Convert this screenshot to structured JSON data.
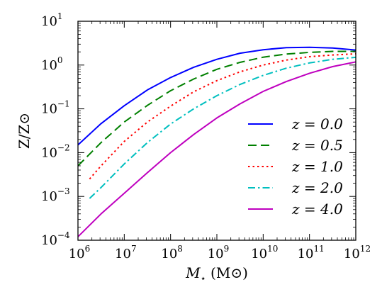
{
  "chart_data": {
    "type": "line",
    "xlabel": "M⋆ (M⊙)",
    "ylabel": "Z/Z⊙",
    "x_scale": "log",
    "y_scale": "log",
    "xlim": [
      1000000,
      1000000000000
    ],
    "ylim": [
      0.0001,
      10
    ],
    "x_ticks": [
      {
        "base": "10",
        "exp": "6"
      },
      {
        "base": "10",
        "exp": "7"
      },
      {
        "base": "10",
        "exp": "8"
      },
      {
        "base": "10",
        "exp": "9"
      },
      {
        "base": "10",
        "exp": "10"
      },
      {
        "base": "10",
        "exp": "11"
      },
      {
        "base": "10",
        "exp": "12"
      }
    ],
    "y_ticks": [
      {
        "base": "10",
        "exp": "1"
      },
      {
        "base": "10",
        "exp": "0"
      },
      {
        "base": "10",
        "exp": "−1"
      },
      {
        "base": "10",
        "exp": "−2"
      },
      {
        "base": "10",
        "exp": "−3"
      },
      {
        "base": "10",
        "exp": "−4"
      }
    ],
    "grid": false,
    "legend_position": "lower-right",
    "series": [
      {
        "name": "z = 0.0",
        "color": "#0000ff",
        "dash": "solid",
        "x": [
          1000000.0,
          3160000.0,
          10000000.0,
          31600000.0,
          100000000.0,
          316000000.0,
          1000000000.0,
          3160000000.0,
          10000000000.0,
          31600000000.0,
          100000000000.0,
          316000000000.0,
          1000000000000.0
        ],
        "y": [
          0.015,
          0.046,
          0.118,
          0.27,
          0.52,
          0.89,
          1.35,
          1.86,
          2.24,
          2.5,
          2.55,
          2.45,
          2.2
        ]
      },
      {
        "name": "z = 0.5",
        "color": "#008000",
        "dash": "dashed",
        "x": [
          1000000.0,
          3160000.0,
          10000000.0,
          31600000.0,
          100000000.0,
          316000000.0,
          1000000000.0,
          3160000000.0,
          10000000000.0,
          31600000000.0,
          100000000000.0,
          316000000000.0,
          1000000000000.0
        ],
        "y": [
          0.005,
          0.017,
          0.05,
          0.12,
          0.26,
          0.48,
          0.8,
          1.15,
          1.51,
          1.78,
          1.95,
          2.05,
          2.05
        ]
      },
      {
        "name": "z = 1.0",
        "color": "#ff0000",
        "dash": "dotted",
        "x": [
          1780000.0,
          3160000.0,
          10000000.0,
          31600000.0,
          100000000.0,
          316000000.0,
          1000000000.0,
          3160000000.0,
          10000000000.0,
          31600000000.0,
          100000000000.0,
          316000000000.0,
          1000000000000.0
        ],
        "y": [
          0.0025,
          0.005,
          0.018,
          0.05,
          0.115,
          0.245,
          0.44,
          0.7,
          1.0,
          1.3,
          1.55,
          1.7,
          1.8
        ]
      },
      {
        "name": "z = 2.0",
        "color": "#00bfbf",
        "dash": "dashdot",
        "x": [
          1780000.0,
          3160000.0,
          10000000.0,
          31600000.0,
          100000000.0,
          316000000.0,
          1000000000.0,
          3160000000.0,
          10000000000.0,
          31600000000.0,
          100000000000.0,
          316000000000.0,
          1000000000000.0
        ],
        "y": [
          0.0009,
          0.0016,
          0.0055,
          0.017,
          0.045,
          0.1,
          0.2,
          0.36,
          0.58,
          0.85,
          1.12,
          1.35,
          1.5
        ]
      },
      {
        "name": "z = 4.0",
        "color": "#bf00bf",
        "dash": "solid",
        "x": [
          1000000.0,
          3160000.0,
          10000000.0,
          31600000.0,
          100000000.0,
          316000000.0,
          1000000000.0,
          3160000000.0,
          10000000000.0,
          31600000000.0,
          100000000000.0,
          316000000000.0,
          1000000000000.0
        ],
        "y": [
          0.00012,
          0.0004,
          0.00118,
          0.0035,
          0.01,
          0.026,
          0.062,
          0.13,
          0.25,
          0.42,
          0.65,
          0.92,
          1.18
        ]
      }
    ]
  }
}
